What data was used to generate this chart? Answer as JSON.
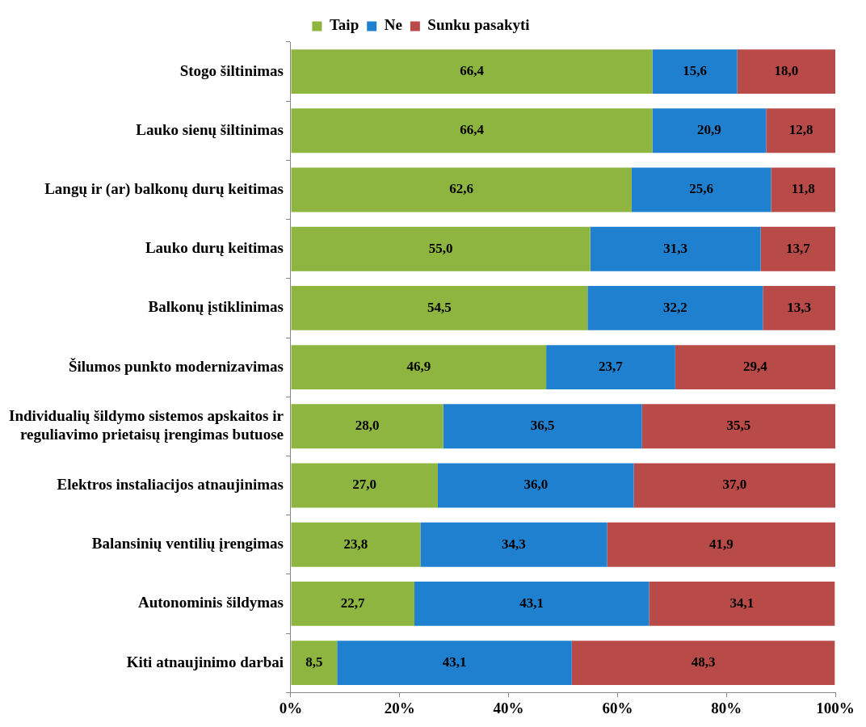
{
  "chart_data": {
    "type": "bar",
    "orientation": "horizontal",
    "stacked": true,
    "legend": "top",
    "categories": [
      "Stogo šiltinimas",
      "Lauko sienų šiltinimas",
      "Langų ir (ar) balkonų durų keitimas",
      "Lauko durų keitimas",
      "Balkonų įstiklinimas",
      "Šilumos punkto modernizavimas",
      "Individualių šildymo sistemos apskaitos ir reguliavimo prietaisų įrengimas butuose",
      "Elektros instaliacijos atnaujinimas",
      "Balansinių ventilių įrengimas",
      "Autonominis šildymas",
      "Kiti atnaujinimo darbai"
    ],
    "series": [
      {
        "name": "Taip",
        "color": "#8db540",
        "values": [
          66.4,
          66.4,
          62.6,
          55.0,
          54.5,
          46.9,
          28.0,
          27.0,
          23.8,
          22.7,
          8.5
        ],
        "value_labels": [
          "66,4",
          "66,4",
          "62,6",
          "55,0",
          "54,5",
          "46,9",
          "28,0",
          "27,0",
          "23,8",
          "22,7",
          "8,5"
        ]
      },
      {
        "name": "Ne",
        "color": "#1f80d0",
        "values": [
          15.6,
          20.9,
          25.6,
          31.3,
          32.2,
          23.7,
          36.5,
          36.0,
          34.3,
          43.1,
          43.1
        ],
        "value_labels": [
          "15,6",
          "20,9",
          "25,6",
          "31,3",
          "32,2",
          "23,7",
          "36,5",
          "36,0",
          "34,3",
          "43,1",
          "43,1"
        ]
      },
      {
        "name": "Sunku pasakyti",
        "color": "#b84a47",
        "values": [
          18.0,
          12.8,
          11.8,
          13.7,
          13.3,
          29.4,
          35.5,
          37.0,
          41.9,
          34.1,
          48.3
        ],
        "value_labels": [
          "18,0",
          "12,8",
          "11,8",
          "13,7",
          "13,3",
          "29,4",
          "35,5",
          "37,0",
          "41,9",
          "34,1",
          "48,3"
        ]
      }
    ],
    "xlim": [
      0,
      100
    ],
    "xticks": [
      {
        "value": 0,
        "label": "0%"
      },
      {
        "value": 20,
        "label": "20%"
      },
      {
        "value": 40,
        "label": "40%"
      },
      {
        "value": 60,
        "label": "60%"
      },
      {
        "value": 80,
        "label": "80%"
      },
      {
        "value": 100,
        "label": "100%"
      }
    ]
  }
}
